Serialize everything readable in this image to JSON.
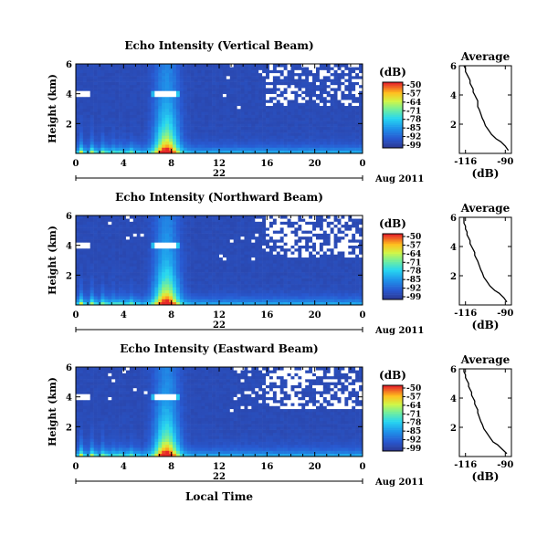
{
  "chart_data": [
    {
      "type": "heatmap",
      "title": "Echo Intensity (Vertical Beam)",
      "ylabel": "Height (km)",
      "xlabel": "",
      "x_ticks": [
        "0",
        "4",
        "8",
        "12",
        "16",
        "20",
        "0"
      ],
      "y_ticks": [
        "2",
        "4",
        "6"
      ],
      "xlim": [
        0,
        24
      ],
      "ylim": [
        0,
        6
      ],
      "date_day": "22",
      "date_label": "Aug 2011",
      "colorbar": {
        "label": "(dB)",
        "ticks": [
          "-50",
          "-57",
          "-64",
          "-71",
          "-78",
          "-85",
          "-92",
          "-99"
        ],
        "range": [
          -99,
          -50
        ]
      },
      "profile": {
        "title": "Average",
        "xlabel": "(dB)",
        "x_ticks": [
          "-116",
          "-90"
        ],
        "y_ticks": [
          "2",
          "4",
          "6"
        ],
        "xlim": [
          -120,
          -86
        ],
        "ylim": [
          0,
          6
        ],
        "x": [
          -88,
          -90,
          -93,
          -96,
          -99,
          -101,
          -103,
          -104,
          -105,
          -106,
          -107,
          -108,
          -108,
          -108,
          -109,
          -110,
          -111,
          -111,
          -112,
          -113,
          -113,
          -114,
          -115,
          -116,
          -116,
          -117
        ],
        "y": [
          0.2,
          0.5,
          0.8,
          1.0,
          1.3,
          1.6,
          1.9,
          2.2,
          2.4,
          2.7,
          3.0,
          3.2,
          3.4,
          3.6,
          3.8,
          4.0,
          4.2,
          4.4,
          4.6,
          4.8,
          5.0,
          5.2,
          5.4,
          5.6,
          5.8,
          6.0
        ]
      }
    },
    {
      "type": "heatmap",
      "title": "Echo Intensity (Northward Beam)",
      "ylabel": "Height (km)",
      "xlabel": "",
      "x_ticks": [
        "0",
        "4",
        "8",
        "12",
        "16",
        "20",
        "0"
      ],
      "y_ticks": [
        "2",
        "4",
        "6"
      ],
      "xlim": [
        0,
        24
      ],
      "ylim": [
        0,
        6
      ],
      "date_day": "22",
      "date_label": "Aug 2011",
      "colorbar": {
        "label": "(dB)",
        "ticks": [
          "-50",
          "-57",
          "-64",
          "-71",
          "-78",
          "-85",
          "-92",
          "-99"
        ],
        "range": [
          -99,
          -50
        ]
      },
      "profile": {
        "title": "Average",
        "xlabel": "(dB)",
        "x_ticks": [
          "-116",
          "-90"
        ],
        "y_ticks": [
          "2",
          "4",
          "6"
        ],
        "xlim": [
          -120,
          -86
        ],
        "ylim": [
          0,
          6
        ],
        "x": [
          -89,
          -91,
          -94,
          -97,
          -100,
          -102,
          -104,
          -105,
          -106,
          -107,
          -108,
          -109,
          -110,
          -110,
          -111,
          -112,
          -113,
          -113,
          -114,
          -115,
          -115,
          -116,
          -116,
          -117,
          -117,
          -117
        ],
        "y": [
          0.2,
          0.5,
          0.8,
          1.0,
          1.3,
          1.6,
          1.9,
          2.2,
          2.4,
          2.7,
          3.0,
          3.2,
          3.4,
          3.6,
          3.8,
          4.0,
          4.2,
          4.4,
          4.6,
          4.8,
          5.0,
          5.2,
          5.4,
          5.6,
          5.8,
          6.0
        ]
      }
    },
    {
      "type": "heatmap",
      "title": "Echo Intensity (Eastward Beam)",
      "ylabel": "Height (km)",
      "xlabel": "Local Time",
      "x_ticks": [
        "0",
        "4",
        "8",
        "12",
        "16",
        "20",
        "0"
      ],
      "y_ticks": [
        "2",
        "4",
        "6"
      ],
      "xlim": [
        0,
        24
      ],
      "ylim": [
        0,
        6
      ],
      "date_day": "22",
      "date_label": "Aug 2011",
      "colorbar": {
        "label": "(dB)",
        "ticks": [
          "-50",
          "-57",
          "-64",
          "-71",
          "-78",
          "-85",
          "-92",
          "-99"
        ],
        "range": [
          -99,
          -50
        ]
      },
      "profile": {
        "title": "Average",
        "xlabel": "(dB)",
        "x_ticks": [
          "-116",
          "-90"
        ],
        "y_ticks": [
          "2",
          "4",
          "6"
        ],
        "xlim": [
          -120,
          -86
        ],
        "ylim": [
          0,
          6
        ],
        "x": [
          -89,
          -92,
          -95,
          -98,
          -100,
          -102,
          -104,
          -105,
          -106,
          -107,
          -108,
          -108,
          -109,
          -110,
          -110,
          -111,
          -112,
          -112,
          -113,
          -114,
          -114,
          -115,
          -116,
          -116,
          -117,
          -117
        ],
        "y": [
          0.2,
          0.5,
          0.8,
          1.0,
          1.3,
          1.6,
          1.9,
          2.2,
          2.4,
          2.7,
          3.0,
          3.2,
          3.4,
          3.6,
          3.8,
          4.0,
          4.2,
          4.4,
          4.6,
          4.8,
          5.0,
          5.2,
          5.4,
          5.6,
          5.8,
          6.0
        ]
      }
    }
  ]
}
